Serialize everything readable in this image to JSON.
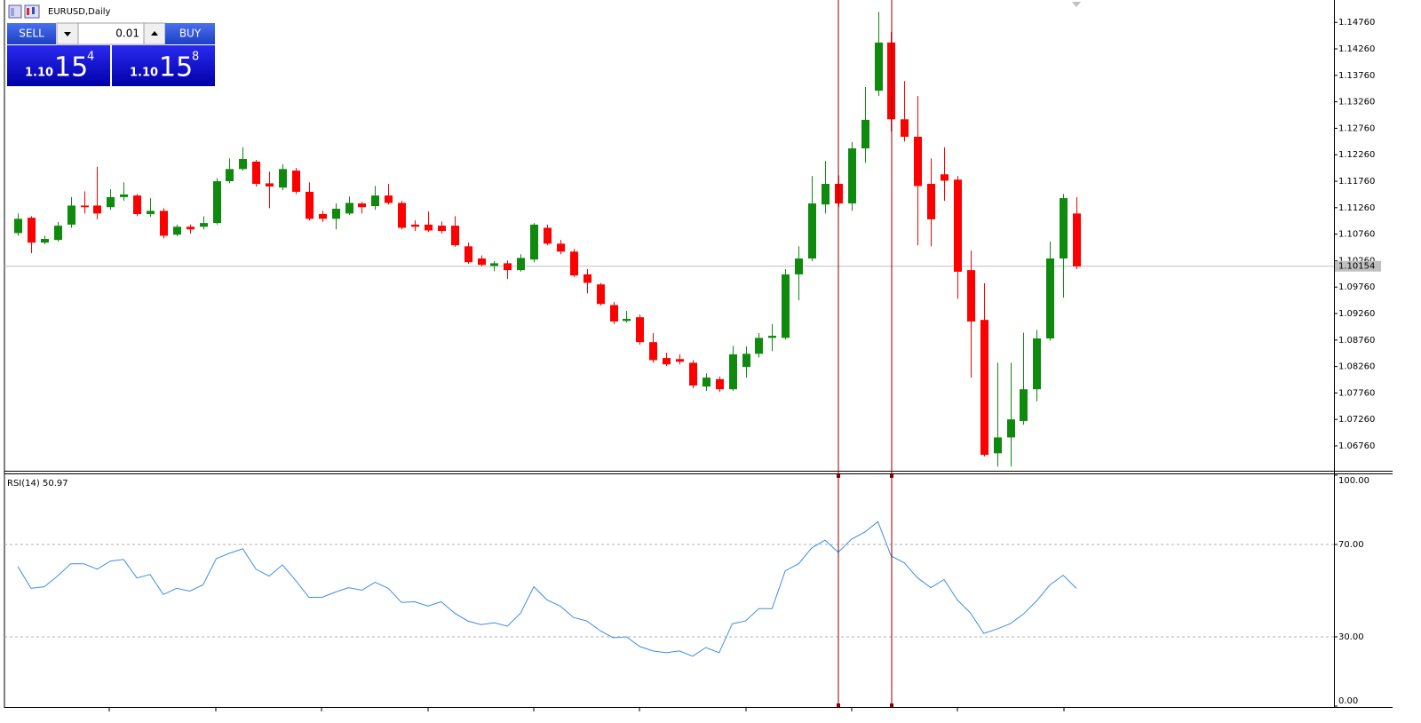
{
  "window": {
    "title": "EURUSD,Daily",
    "trade_panel": {
      "sell": "SELL",
      "buy": "BUY",
      "lot": 0.01,
      "bid": {
        "handle": "1.10",
        "pips": "15",
        "point": "4"
      },
      "ask": {
        "handle": "1.10",
        "pips": "15",
        "point": "8"
      }
    }
  },
  "chart_data": [
    {
      "type": "candlestick",
      "up_color": "#0f8a0f",
      "down_color": "#ff0000",
      "ylim": [
        1.0629,
        1.1515
      ],
      "yticks": [
        {
          "value": 1.1476,
          "label": "1.14760"
        },
        {
          "value": 1.1426,
          "label": "1.14260"
        },
        {
          "value": 1.1376,
          "label": "1.13760"
        },
        {
          "value": 1.1326,
          "label": "1.13260"
        },
        {
          "value": 1.1276,
          "label": "1.12760"
        },
        {
          "value": 1.1226,
          "label": "1.12260"
        },
        {
          "value": 1.1176,
          "label": "1.11760"
        },
        {
          "value": 1.1126,
          "label": "1.11260"
        },
        {
          "value": 1.1076,
          "label": "1.10760"
        },
        {
          "value": 1.1026,
          "label": "1.10260"
        },
        {
          "value": 1.0976,
          "label": "1.09760"
        },
        {
          "value": 1.0926,
          "label": "1.09260"
        },
        {
          "value": 1.0876,
          "label": "1.08760"
        },
        {
          "value": 1.0826,
          "label": "1.08260"
        },
        {
          "value": 1.0776,
          "label": "1.07760"
        },
        {
          "value": 1.0726,
          "label": "1.07260"
        },
        {
          "value": 1.0676,
          "label": "1.06760"
        }
      ],
      "current_price": 1.10154,
      "ohlc": [
        [
          1.1078,
          1.1115,
          1.1073,
          1.1105
        ],
        [
          1.1107,
          1.111,
          1.104,
          1.106
        ],
        [
          1.106,
          1.1073,
          1.1057,
          1.1067
        ],
        [
          1.1065,
          1.1099,
          1.1062,
          1.1092
        ],
        [
          1.1094,
          1.1146,
          1.1088,
          1.113
        ],
        [
          1.113,
          1.1157,
          1.1115,
          1.1127
        ],
        [
          1.113,
          1.1203,
          1.1104,
          1.1115
        ],
        [
          1.1127,
          1.1161,
          1.1122,
          1.1146
        ],
        [
          1.1146,
          1.1174,
          1.1139,
          1.1151
        ],
        [
          1.1149,
          1.1152,
          1.111,
          1.1114
        ],
        [
          1.1114,
          1.1144,
          1.1109,
          1.112
        ],
        [
          1.112,
          1.1125,
          1.1068,
          1.1073
        ],
        [
          1.1075,
          1.1094,
          1.1072,
          1.109
        ],
        [
          1.109,
          1.1094,
          1.1077,
          1.1085
        ],
        [
          1.109,
          1.111,
          1.1085,
          1.1097
        ],
        [
          1.1097,
          1.1182,
          1.1094,
          1.1176
        ],
        [
          1.1176,
          1.1219,
          1.1172,
          1.1199
        ],
        [
          1.1199,
          1.124,
          1.1196,
          1.1218
        ],
        [
          1.1213,
          1.1216,
          1.1166,
          1.1171
        ],
        [
          1.1172,
          1.1194,
          1.1125,
          1.1166
        ],
        [
          1.1164,
          1.1208,
          1.1159,
          1.1199
        ],
        [
          1.1196,
          1.1201,
          1.1152,
          1.1156
        ],
        [
          1.1156,
          1.1174,
          1.1102,
          1.1105
        ],
        [
          1.1114,
          1.112,
          1.1099,
          1.1105
        ],
        [
          1.1105,
          1.1134,
          1.1085,
          1.1124
        ],
        [
          1.1115,
          1.1147,
          1.1112,
          1.1135
        ],
        [
          1.1134,
          1.1137,
          1.1115,
          1.1127
        ],
        [
          1.1129,
          1.1167,
          1.1122,
          1.1149
        ],
        [
          1.1149,
          1.1171,
          1.1132,
          1.1135
        ],
        [
          1.1135,
          1.1139,
          1.1085,
          1.1088
        ],
        [
          1.1094,
          1.1102,
          1.1082,
          1.109
        ],
        [
          1.1094,
          1.1119,
          1.108,
          1.1083
        ],
        [
          1.1092,
          1.11,
          1.1077,
          1.1082
        ],
        [
          1.1092,
          1.111,
          1.1052,
          1.1055
        ],
        [
          1.1053,
          1.106,
          1.102,
          1.1023
        ],
        [
          1.103,
          1.1036,
          1.1015,
          1.1018
        ],
        [
          1.1016,
          1.1025,
          1.1006,
          1.1021
        ],
        [
          1.1021,
          1.1026,
          1.0991,
          1.1008
        ],
        [
          1.1008,
          1.1038,
          1.1005,
          1.1031
        ],
        [
          1.1028,
          1.1097,
          1.1023,
          1.1094
        ],
        [
          1.1088,
          1.1094,
          1.1055,
          1.1058
        ],
        [
          1.1058,
          1.1065,
          1.1038,
          1.1043
        ],
        [
          1.1043,
          1.1048,
          1.0995,
          1.0998
        ],
        [
          1.1,
          1.101,
          1.0964,
          1.0984
        ],
        [
          1.0981,
          1.0984,
          1.0941,
          1.0944
        ],
        [
          1.0942,
          1.0948,
          1.0906,
          1.0911
        ],
        [
          1.0912,
          1.0931,
          1.0909,
          1.0916
        ],
        [
          1.0919,
          1.0924,
          1.0867,
          1.0872
        ],
        [
          1.0872,
          1.0889,
          1.0833,
          1.0838
        ],
        [
          1.0842,
          1.0852,
          1.0827,
          1.083
        ],
        [
          1.084,
          1.0849,
          1.083,
          1.0835
        ],
        [
          1.0833,
          1.0838,
          1.0785,
          1.079
        ],
        [
          1.0788,
          1.0813,
          1.078,
          1.0805
        ],
        [
          1.0802,
          1.0807,
          1.0778,
          1.0783
        ],
        [
          1.0783,
          1.0865,
          1.078,
          1.0849
        ],
        [
          1.0825,
          1.0864,
          1.0805,
          1.085
        ],
        [
          1.085,
          1.0889,
          1.0843,
          1.088
        ],
        [
          1.088,
          1.0906,
          1.0855,
          1.0884
        ],
        [
          1.088,
          1.101,
          1.0877,
          1.1
        ],
        [
          1.1,
          1.1053,
          1.0951,
          1.103
        ],
        [
          1.103,
          1.1186,
          1.1025,
          1.1134
        ],
        [
          1.1132,
          1.1214,
          1.1115,
          1.1171
        ],
        [
          1.1171,
          1.1187,
          1.1127,
          1.1134
        ],
        [
          1.1134,
          1.125,
          1.112,
          1.1238
        ],
        [
          1.1238,
          1.1354,
          1.1211,
          1.1292
        ],
        [
          1.1347,
          1.1496,
          1.1337,
          1.1438
        ],
        [
          1.1438,
          1.1458,
          1.127,
          1.1293
        ],
        [
          1.1293,
          1.1365,
          1.1251,
          1.126
        ],
        [
          1.126,
          1.1337,
          1.1055,
          1.1167
        ],
        [
          1.1171,
          1.1219,
          1.1053,
          1.1104
        ],
        [
          1.1189,
          1.124,
          1.1139,
          1.1177
        ],
        [
          1.1179,
          1.1186,
          1.0954,
          1.1005
        ],
        [
          1.1008,
          1.1045,
          1.0805,
          1.0911
        ],
        [
          1.0914,
          1.0983,
          1.0656,
          1.0659
        ],
        [
          1.0662,
          1.0833,
          1.0637,
          1.0692
        ],
        [
          1.0692,
          1.0833,
          1.0637,
          1.0726
        ],
        [
          1.0723,
          1.089,
          1.0716,
          1.0783
        ],
        [
          1.0783,
          1.0895,
          1.076,
          1.0879
        ],
        [
          1.0879,
          1.1062,
          1.0875,
          1.103
        ],
        [
          1.103,
          1.1152,
          1.0956,
          1.1144
        ],
        [
          1.1115,
          1.1146,
          1.101,
          1.1015
        ]
      ]
    },
    {
      "type": "line",
      "name": "RSI(14)",
      "color": "#3c8ee6",
      "ylim": [
        0,
        100
      ],
      "yticks": [
        {
          "value": 100,
          "label": "100.00"
        },
        {
          "value": 70,
          "label": "70.00"
        },
        {
          "value": 30,
          "label": "30.00"
        },
        {
          "value": 0,
          "label": "0.00"
        }
      ],
      "values": [
        60.5,
        51.0,
        51.7,
        56.3,
        61.6,
        61.6,
        59.3,
        62.8,
        63.5,
        55.5,
        57.0,
        48.3,
        51.0,
        49.8,
        52.5,
        63.9,
        66.2,
        68.1,
        59.3,
        56.3,
        61.2,
        54.4,
        47.1,
        47.1,
        49.4,
        51.3,
        50.2,
        53.6,
        51.0,
        44.9,
        45.2,
        43.3,
        45.2,
        40.3,
        36.9,
        35.3,
        36.1,
        34.6,
        40.3,
        51.7,
        46.0,
        43.3,
        38.4,
        36.9,
        32.7,
        29.6,
        30.0,
        25.8,
        23.9,
        23.1,
        23.9,
        21.6,
        25.4,
        23.1,
        35.7,
        36.9,
        42.2,
        42.2,
        58.6,
        61.6,
        68.5,
        71.9,
        66.6,
        72.3,
        75.3,
        79.9,
        65.0,
        62.0,
        55.5,
        51.3,
        54.8,
        46.0,
        40.3,
        31.5,
        33.4,
        35.7,
        39.9,
        45.6,
        52.5,
        56.7,
        50.97
      ]
    }
  ]
}
